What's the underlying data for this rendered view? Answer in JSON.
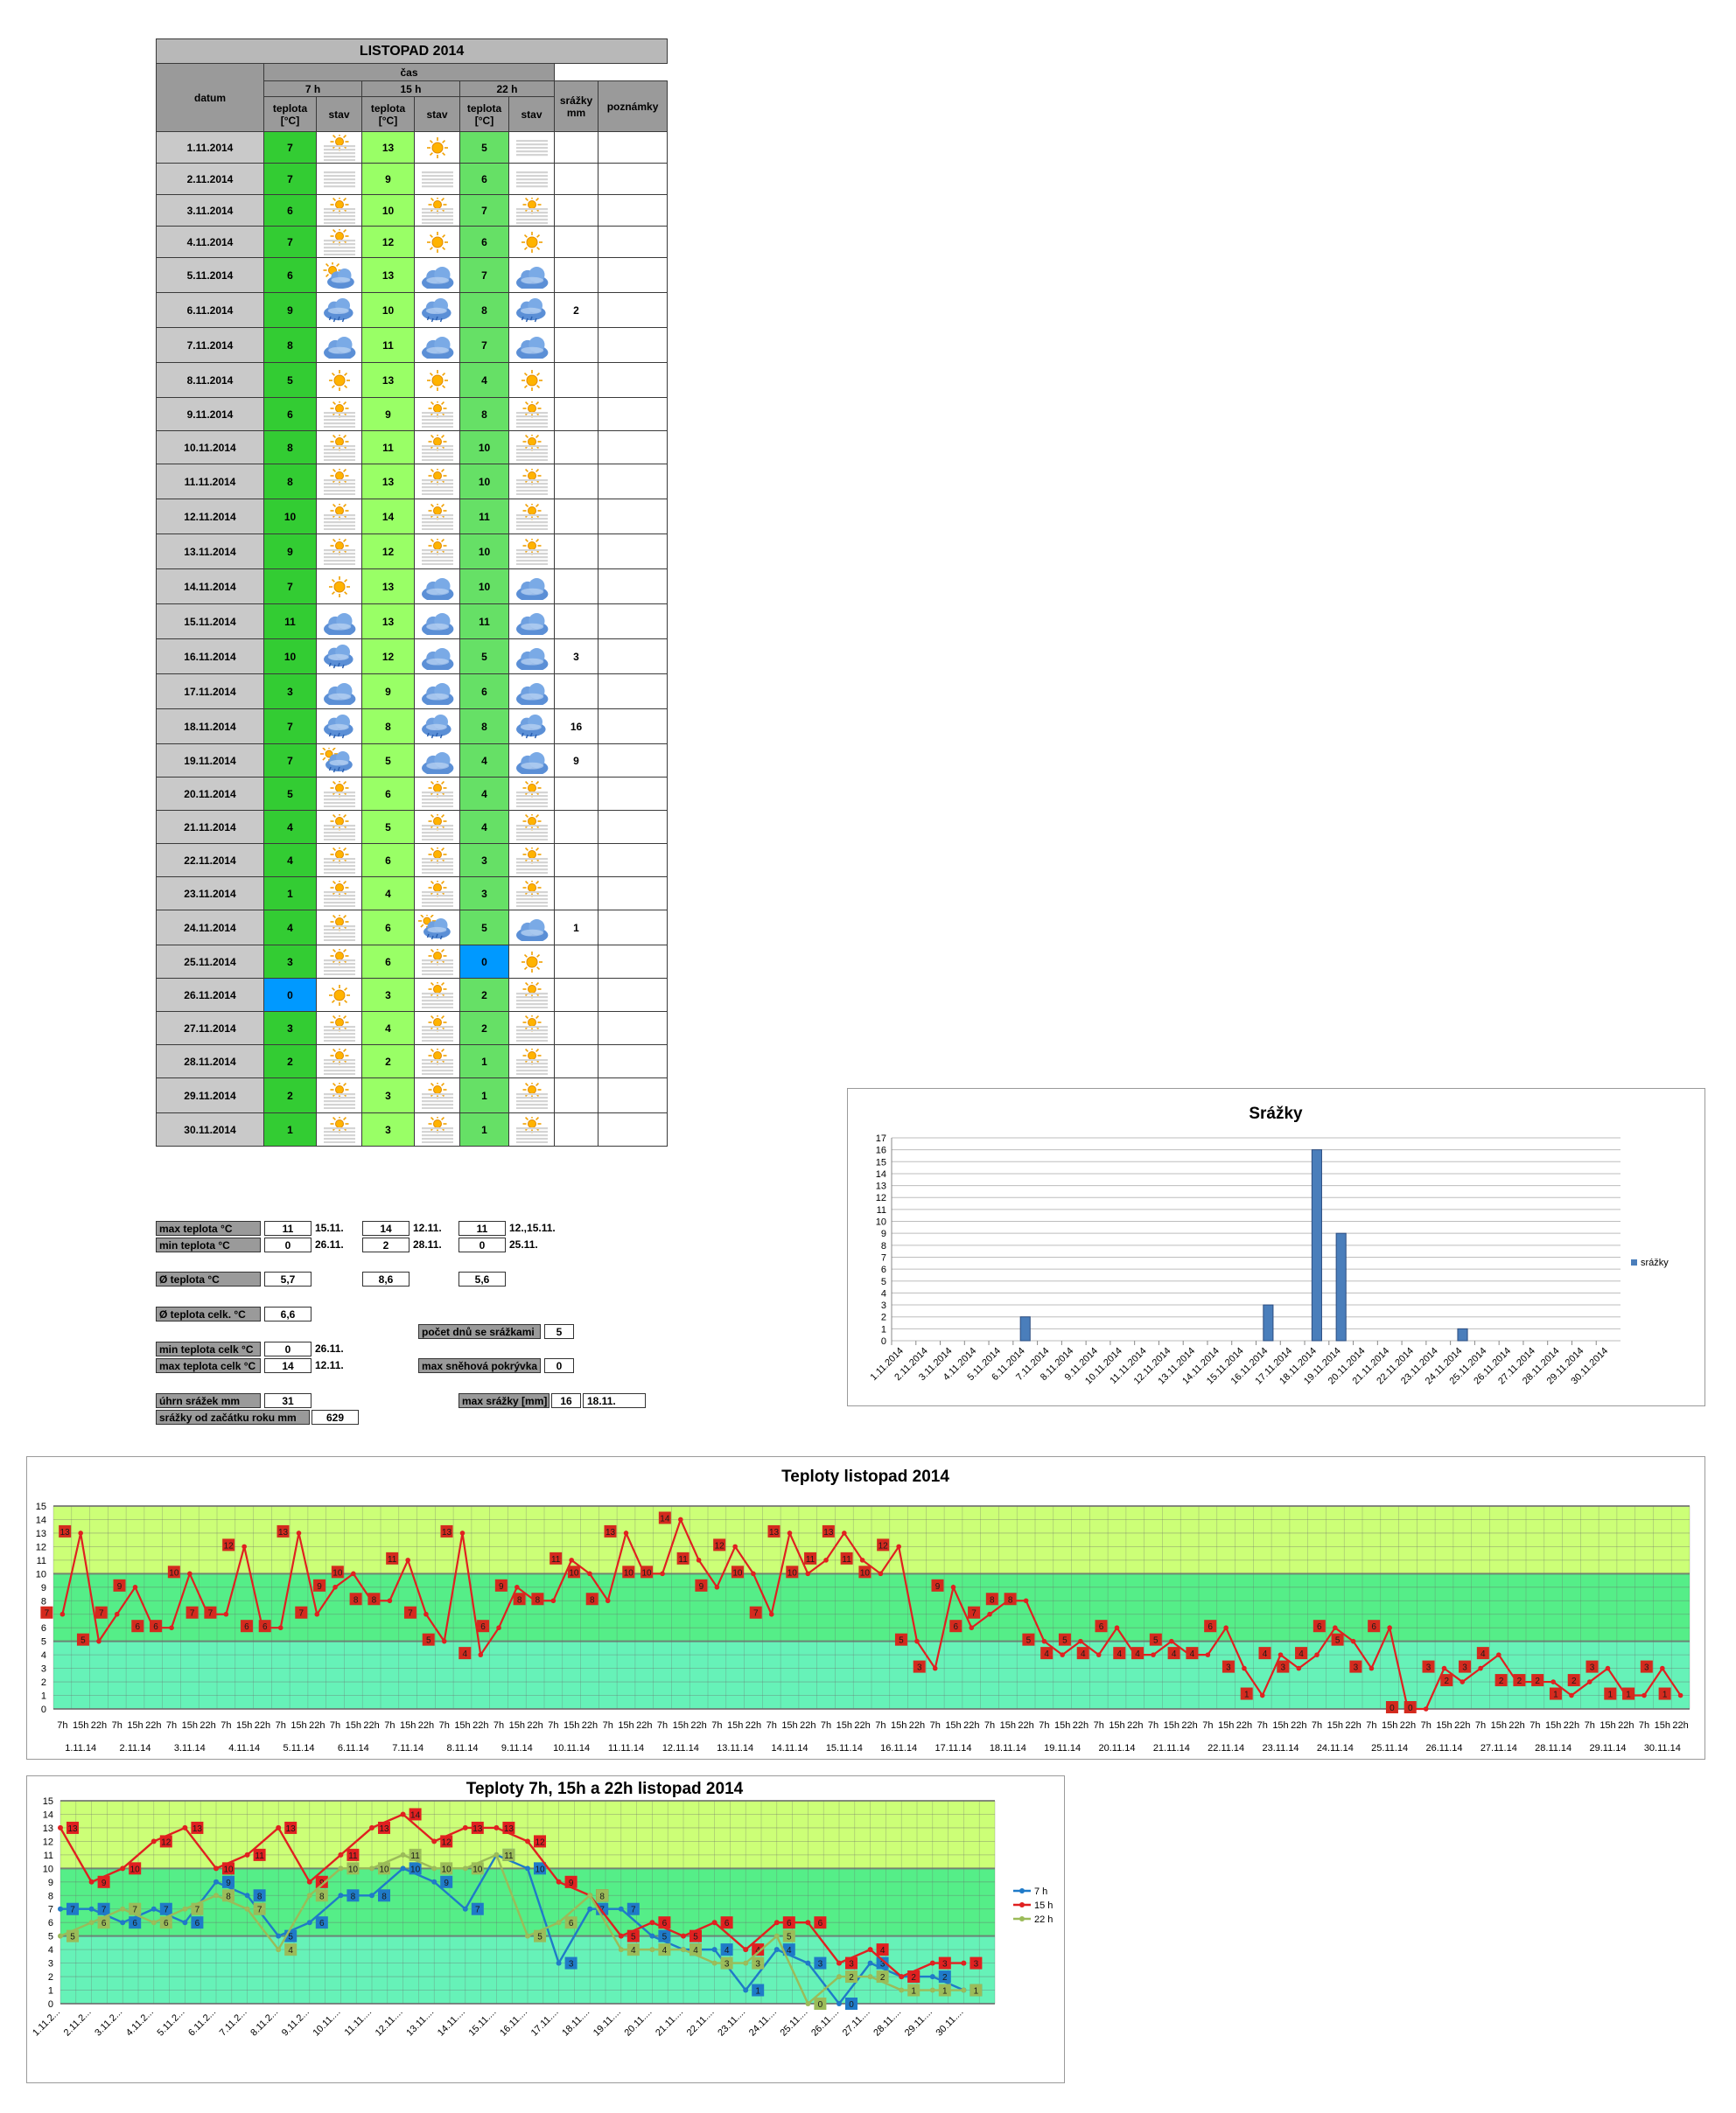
{
  "table": {
    "title": "LISTOPAD 2014",
    "h_datum": "datum",
    "h_cas": "čas",
    "h_7": "7 h",
    "h_15": "15 h",
    "h_22": "22 h",
    "h_teplota_1": "teplota",
    "h_teplota_2": "[°C]",
    "h_stav": "stav",
    "h_srazky_1": "srážky",
    "h_srazky_2": "mm",
    "h_poznamky": "poznámky",
    "rows": [
      {
        "date": "1.11.2014",
        "t7": 7,
        "s7": "fog-sun",
        "t15": 13,
        "s15": "sun",
        "t22": 5,
        "s22": "fog",
        "rain": ""
      },
      {
        "date": "2.11.2014",
        "t7": 7,
        "s7": "fog",
        "t15": 9,
        "s15": "fog",
        "t22": 6,
        "s22": "fog",
        "rain": ""
      },
      {
        "date": "3.11.2014",
        "t7": 6,
        "s7": "fog-sun",
        "t15": 10,
        "s15": "fog-sun",
        "t22": 7,
        "s22": "fog-sun",
        "rain": ""
      },
      {
        "date": "4.11.2014",
        "t7": 7,
        "s7": "fog-sun",
        "t15": 12,
        "s15": "sun",
        "t22": 6,
        "s22": "sun",
        "rain": ""
      },
      {
        "date": "5.11.2014",
        "t7": 6,
        "s7": "partly",
        "t15": 13,
        "s15": "cloud",
        "t22": 7,
        "s22": "cloud",
        "rain": ""
      },
      {
        "date": "6.11.2014",
        "t7": 9,
        "s7": "rain",
        "t15": 10,
        "s15": "rain",
        "t22": 8,
        "s22": "rain",
        "rain": "2"
      },
      {
        "date": "7.11.2014",
        "t7": 8,
        "s7": "cloud",
        "t15": 11,
        "s15": "cloud",
        "t22": 7,
        "s22": "cloud",
        "rain": ""
      },
      {
        "date": "8.11.2014",
        "t7": 5,
        "s7": "sun",
        "t15": 13,
        "s15": "sun",
        "t22": 4,
        "s22": "sun",
        "rain": ""
      },
      {
        "date": "9.11.2014",
        "t7": 6,
        "s7": "fog-sun",
        "t15": 9,
        "s15": "fog-sun",
        "t22": 8,
        "s22": "fog-sun",
        "rain": ""
      },
      {
        "date": "10.11.2014",
        "t7": 8,
        "s7": "fog-sun",
        "t15": 11,
        "s15": "fog-sun",
        "t22": 10,
        "s22": "fog-sun",
        "rain": ""
      },
      {
        "date": "11.11.2014",
        "t7": 8,
        "s7": "fog-sun",
        "t15": 13,
        "s15": "fog-sun",
        "t22": 10,
        "s22": "fog-sun",
        "rain": ""
      },
      {
        "date": "12.11.2014",
        "t7": 10,
        "s7": "fog-sun",
        "t15": 14,
        "s15": "fog-sun",
        "t22": 11,
        "s22": "fog-sun",
        "rain": ""
      },
      {
        "date": "13.11.2014",
        "t7": 9,
        "s7": "fog-sun",
        "t15": 12,
        "s15": "fog-sun",
        "t22": 10,
        "s22": "fog-sun",
        "rain": ""
      },
      {
        "date": "14.11.2014",
        "t7": 7,
        "s7": "sun",
        "t15": 13,
        "s15": "cloud",
        "t22": 10,
        "s22": "cloud",
        "rain": ""
      },
      {
        "date": "15.11.2014",
        "t7": 11,
        "s7": "cloud",
        "t15": 13,
        "s15": "cloud",
        "t22": 11,
        "s22": "cloud",
        "rain": ""
      },
      {
        "date": "16.11.2014",
        "t7": 10,
        "s7": "rain",
        "t15": 12,
        "s15": "cloud",
        "t22": 5,
        "s22": "cloud",
        "rain": "3"
      },
      {
        "date": "17.11.2014",
        "t7": 3,
        "s7": "cloud",
        "t15": 9,
        "s15": "cloud",
        "t22": 6,
        "s22": "cloud",
        "rain": ""
      },
      {
        "date": "18.11.2014",
        "t7": 7,
        "s7": "rain",
        "t15": 8,
        "s15": "rain",
        "t22": 8,
        "s22": "rain",
        "rain": "16"
      },
      {
        "date": "19.11.2014",
        "t7": 7,
        "s7": "partly-rain",
        "t15": 5,
        "s15": "cloud",
        "t22": 4,
        "s22": "cloud",
        "rain": "9"
      },
      {
        "date": "20.11.2014",
        "t7": 5,
        "s7": "fog-sun",
        "t15": 6,
        "s15": "fog-sun",
        "t22": 4,
        "s22": "fog-sun",
        "rain": ""
      },
      {
        "date": "21.11.2014",
        "t7": 4,
        "s7": "fog-sun",
        "t15": 5,
        "s15": "fog-sun",
        "t22": 4,
        "s22": "fog-sun",
        "rain": ""
      },
      {
        "date": "22.11.2014",
        "t7": 4,
        "s7": "fog-sun",
        "t15": 6,
        "s15": "fog-sun",
        "t22": 3,
        "s22": "fog-sun",
        "rain": ""
      },
      {
        "date": "23.11.2014",
        "t7": 1,
        "s7": "fog-sun",
        "t15": 4,
        "s15": "fog-sun",
        "t22": 3,
        "s22": "fog-sun",
        "rain": ""
      },
      {
        "date": "24.11.2014",
        "t7": 4,
        "s7": "fog-sun",
        "t15": 6,
        "s15": "partly-rain",
        "t22": 5,
        "s22": "cloud",
        "rain": "1"
      },
      {
        "date": "25.11.2014",
        "t7": 3,
        "s7": "fog-sun",
        "t15": 6,
        "s15": "fog-sun",
        "t22": 0,
        "s22": "sun",
        "rain": ""
      },
      {
        "date": "26.11.2014",
        "t7": 0,
        "s7": "sun",
        "t15": 3,
        "s15": "fog-sun",
        "t22": 2,
        "s22": "fog-sun",
        "rain": ""
      },
      {
        "date": "27.11.2014",
        "t7": 3,
        "s7": "fog-sun",
        "t15": 4,
        "s15": "fog-sun",
        "t22": 2,
        "s22": "fog-sun",
        "rain": ""
      },
      {
        "date": "28.11.2014",
        "t7": 2,
        "s7": "fog-sun",
        "t15": 2,
        "s15": "fog-sun",
        "t22": 1,
        "s22": "fog-sun",
        "rain": ""
      },
      {
        "date": "29.11.2014",
        "t7": 2,
        "s7": "fog-sun",
        "t15": 3,
        "s15": "fog-sun",
        "t22": 1,
        "s22": "fog-sun",
        "rain": ""
      },
      {
        "date": "30.11.2014",
        "t7": 1,
        "s7": "fog-sun",
        "t15": 3,
        "s15": "fog-sun",
        "t22": 1,
        "s22": "fog-sun",
        "rain": ""
      }
    ],
    "colors": {
      "t7": "#33cc33",
      "t15": "#99ff66",
      "t22": "#66e066",
      "zero": "#0099ff",
      "date": "#c9c9c9",
      "header": "#9a9a9a"
    }
  },
  "stats": {
    "max_label": "max teplota °C",
    "min_label": "min teplota °C",
    "max7": "11",
    "max7_date": "15.11.",
    "max15": "14",
    "max15_date": "12.11.",
    "max22": "11",
    "max22_date": "12.,15.11.",
    "min7": "0",
    "min7_date": "26.11.",
    "min15": "2",
    "min15_date": "28.11.",
    "min22": "0",
    "min22_date": "25.11.",
    "avg_label": "Ø teplota °C",
    "avg7": "5,7",
    "avg15": "8,6",
    "avg22": "5,6",
    "avg_total_label": "Ø teplota celk. °C",
    "avg_total": "6,6",
    "rain_days_label": "počet dnů se srážkami",
    "rain_days": "5",
    "min_total_label": "min teplota celk °C",
    "min_total": "0",
    "min_total_date": "26.11.",
    "max_total_label": "max teplota celk °C",
    "max_total": "14",
    "max_total_date": "12.11.",
    "snow_label": "max sněhová pokrývka",
    "snow": "0",
    "rain_sum_label": "úhrn srážek  mm",
    "rain_sum": "31",
    "rain_max_label": "max srážky [mm]",
    "rain_max": "16",
    "rain_max_date": "18.11.",
    "rain_year_label": "srážky od začátku roku mm",
    "rain_year": "629"
  },
  "chart_data": [
    {
      "type": "bar",
      "title": "Srážky",
      "legend": "srážky",
      "legend_position": "right",
      "ylim": [
        0,
        17
      ],
      "categories": [
        "1.11.2014",
        "2.11.2014",
        "3.11.2014",
        "4.11.2014",
        "5.11.2014",
        "6.11.2014",
        "7.11.2014",
        "8.11.2014",
        "9.11.2014",
        "10.11.2014",
        "11.11.2014",
        "12.11.2014",
        "13.11.2014",
        "14.11.2014",
        "15.11.2014",
        "16.11.2014",
        "17.11.2014",
        "18.11.2014",
        "19.11.2014",
        "20.11.2014",
        "21.11.2014",
        "22.11.2014",
        "23.11.2014",
        "24.11.2014",
        "25.11.2014",
        "26.11.2014",
        "27.11.2014",
        "28.11.2014",
        "29.11.2014",
        "30.11.2014"
      ],
      "values": [
        0,
        0,
        0,
        0,
        0,
        2,
        0,
        0,
        0,
        0,
        0,
        0,
        0,
        0,
        0,
        3,
        0,
        16,
        9,
        0,
        0,
        0,
        0,
        1,
        0,
        0,
        0,
        0,
        0,
        0
      ],
      "color": "#4a7ebb"
    },
    {
      "type": "line",
      "title": "Teploty listopad 2014",
      "ylim": [
        0,
        15
      ],
      "time_labels": [
        "7h",
        "15h",
        "22h"
      ],
      "day_labels": [
        "1.11.14",
        "2.11.14",
        "3.11.14",
        "4.11.14",
        "5.11.14",
        "6.11.14",
        "7.11.14",
        "8.11.14",
        "9.11.14",
        "10.11.14",
        "11.11.14",
        "12.11.14",
        "13.11.14",
        "14.11.14",
        "15.11.14",
        "16.11.14",
        "17.11.14",
        "18.11.14",
        "19.11.14",
        "20.11.14",
        "21.11.14",
        "22.11.14",
        "23.11.14",
        "24.11.14",
        "25.11.14",
        "26.11.14",
        "27.11.14",
        "28.11.14",
        "29.11.14",
        "30.11.14"
      ],
      "values": [
        7,
        13,
        5,
        7,
        9,
        6,
        6,
        10,
        7,
        7,
        12,
        6,
        6,
        13,
        7,
        9,
        10,
        8,
        8,
        11,
        7,
        5,
        13,
        4,
        6,
        9,
        8,
        8,
        11,
        10,
        8,
        13,
        10,
        10,
        14,
        11,
        9,
        12,
        10,
        7,
        13,
        10,
        11,
        13,
        11,
        10,
        12,
        5,
        3,
        9,
        6,
        7,
        8,
        8,
        5,
        4,
        5,
        4,
        6,
        4,
        4,
        5,
        4,
        4,
        6,
        3,
        1,
        4,
        3,
        4,
        6,
        5,
        3,
        6,
        0,
        0,
        3,
        2,
        3,
        4,
        2,
        2,
        2,
        1,
        2,
        3,
        1,
        1,
        3,
        1
      ],
      "color": "#e02020",
      "bands": [
        {
          "from": 0,
          "to": 5,
          "color": "#66f2b8"
        },
        {
          "from": 5,
          "to": 10,
          "color": "#55ee88"
        },
        {
          "from": 10,
          "to": 15,
          "color": "#ccff77"
        }
      ]
    },
    {
      "type": "line",
      "title": "Teploty 7h, 15h a 22h listopad 2014",
      "ylim": [
        0,
        15
      ],
      "categories": [
        "1.11.2...",
        "2.11.2...",
        "3.11.2...",
        "4.11.2...",
        "5.11.2...",
        "6.11.2...",
        "7.11.2...",
        "8.11.2...",
        "9.11.2...",
        "10.11....",
        "11.11....",
        "12.11....",
        "13.11....",
        "14.11....",
        "15.11....",
        "16.11....",
        "17.11....",
        "18.11....",
        "19.11....",
        "20.11....",
        "21.11....",
        "22.11....",
        "23.11....",
        "24.11....",
        "25.11....",
        "26.11....",
        "27.11....",
        "28.11....",
        "29.11....",
        "30.11...."
      ],
      "legend_position": "right",
      "series": [
        {
          "name": "7 h",
          "color": "#1f7ac8",
          "values": [
            7,
            7,
            6,
            7,
            6,
            9,
            8,
            5,
            6,
            8,
            8,
            10,
            9,
            7,
            11,
            10,
            3,
            7,
            7,
            5,
            4,
            4,
            1,
            4,
            3,
            0,
            3,
            2,
            2,
            1
          ]
        },
        {
          "name": "15 h",
          "color": "#e02020",
          "values": [
            13,
            9,
            10,
            12,
            13,
            10,
            11,
            13,
            9,
            11,
            13,
            14,
            12,
            13,
            13,
            12,
            9,
            8,
            5,
            6,
            5,
            6,
            4,
            6,
            6,
            3,
            4,
            2,
            3,
            3
          ]
        },
        {
          "name": "22 h",
          "color": "#9bbb59",
          "values": [
            5,
            6,
            7,
            6,
            7,
            8,
            7,
            4,
            8,
            10,
            10,
            11,
            10,
            10,
            11,
            5,
            6,
            8,
            4,
            4,
            4,
            3,
            3,
            5,
            0,
            2,
            2,
            1,
            1,
            1
          ]
        }
      ]
    }
  ]
}
